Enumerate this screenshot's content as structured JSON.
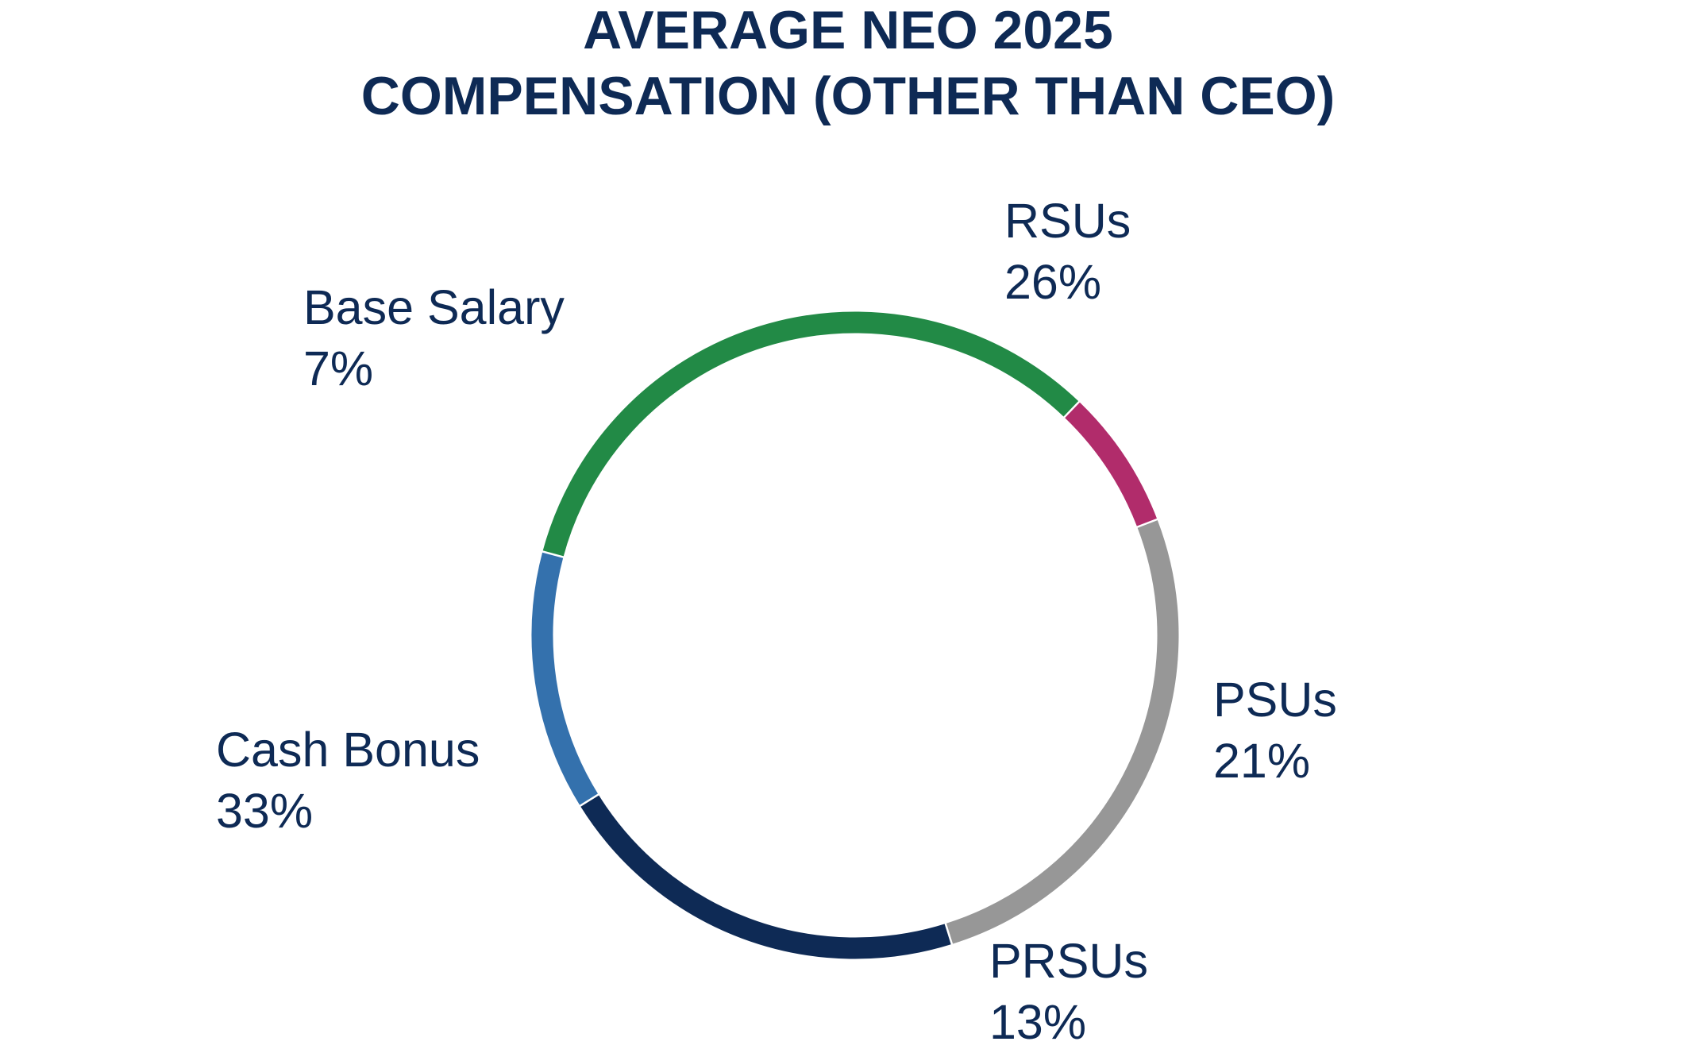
{
  "chart_data": {
    "type": "pie",
    "variant": "donut",
    "title_lines": [
      "AVERAGE NEO 2025",
      "COMPENSATION (OTHER THAN CEO)"
    ],
    "slices": [
      {
        "name": "RSUs",
        "value": 26,
        "label": "26%",
        "color": "#979797"
      },
      {
        "name": "PSUs",
        "value": 21,
        "label": "21%",
        "color": "#0e2a55"
      },
      {
        "name": "PRSUs",
        "value": 13,
        "label": "13%",
        "color": "#3471ad"
      },
      {
        "name": "Cash Bonus",
        "value": 33,
        "label": "33%",
        "color": "#228a46"
      },
      {
        "name": "Base Salary",
        "value": 7,
        "label": "7%",
        "color": "#b12c6b"
      }
    ],
    "start_angle_deg": -21,
    "direction": "clockwise",
    "legend": "none"
  }
}
